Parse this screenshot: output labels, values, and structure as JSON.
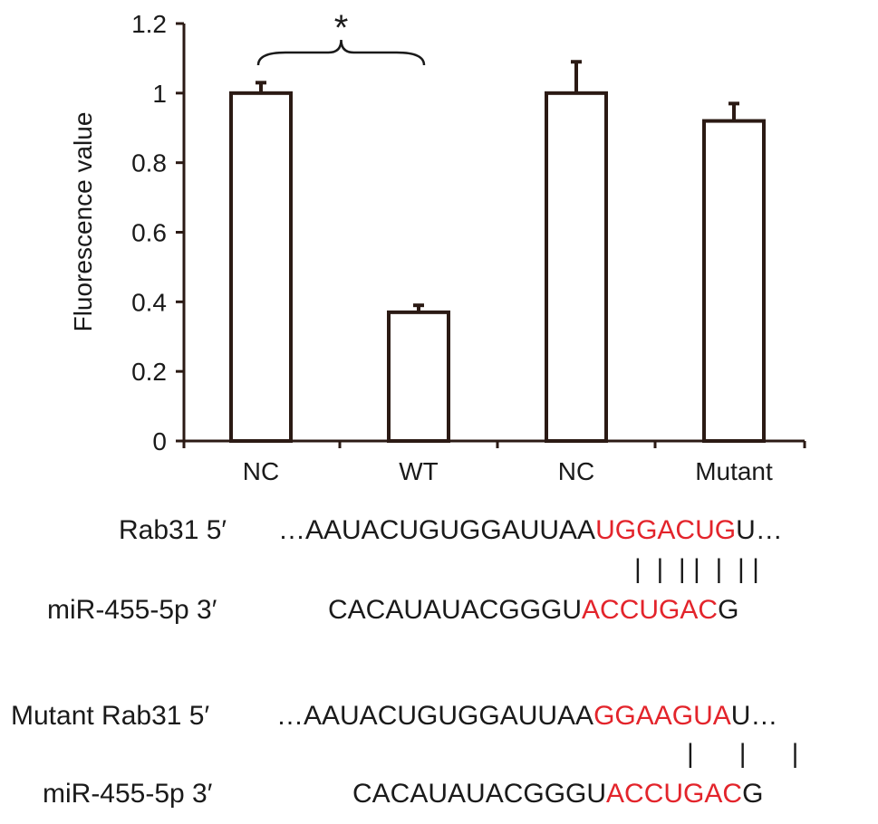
{
  "chart_data": {
    "type": "bar",
    "categories": [
      "NC",
      "WT",
      "NC",
      "Mutant"
    ],
    "values": [
      1.0,
      0.37,
      1.0,
      0.92
    ],
    "errors": [
      0.03,
      0.02,
      0.09,
      0.05
    ],
    "ylabel": "Fluorescence value",
    "ylim": [
      0,
      1.2
    ],
    "yticks": [
      "0",
      "0.2",
      "0.4",
      "0.6",
      "0.8",
      "1",
      "1.2"
    ],
    "significance": {
      "between": [
        "NC",
        "WT"
      ],
      "marker": "*"
    },
    "bar_fill": "#ffffff",
    "bar_stroke": "#2b1a14"
  },
  "sequences": {
    "block1": {
      "rab31_label": "Rab31 5′",
      "rab31_prefix": "…AAUACUGUGGAUUAA",
      "rab31_site": "UGGACUG",
      "rab31_suffix": "U…",
      "pairing": "|  |  | |  |  | |",
      "mir_label": "miR-455-5p 3′",
      "mir_prefix": "CACAUAUACGGGU",
      "mir_site": "ACCUGAC",
      "mir_suffix": "G"
    },
    "block2": {
      "mut_label": "Mutant Rab31 5′",
      "mut_prefix": "…AAUACUGUGGAUUAA",
      "mut_site": "GGAAGUA",
      "mut_suffix": "U…",
      "pairing": "|      |      |",
      "mir_label": "miR-455-5p 3′",
      "mir_prefix": "CACAUAUACGGGU",
      "mir_site": "ACCUGAC",
      "mir_suffix": "G"
    },
    "highlight_color": "#e3242b"
  }
}
